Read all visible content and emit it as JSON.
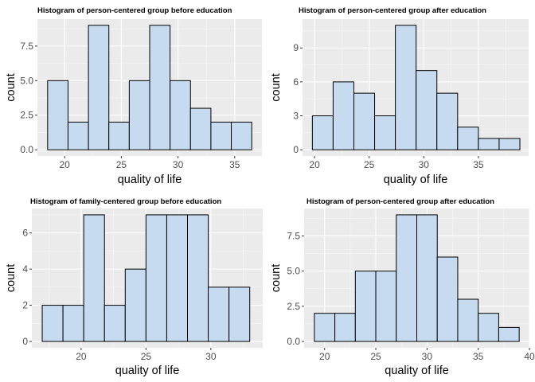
{
  "chart_data": [
    {
      "type": "bar",
      "title": "Histogram of person-centered group before education",
      "xlabel": "quality of life",
      "ylabel": "count",
      "xlim": [
        17.6,
        37.4
      ],
      "ylim": [
        -0.45,
        9.45
      ],
      "xticks": [
        20,
        25,
        30,
        35
      ],
      "yticks": [
        0,
        2.5,
        5,
        7.5
      ],
      "ytick_labels": [
        "0.0",
        "2.5",
        "5.0",
        "7.5"
      ],
      "bin_width": 1.8,
      "bins": [
        {
          "x0": 18.5,
          "x1": 20.3,
          "count": 5
        },
        {
          "x0": 20.3,
          "x1": 22.1,
          "count": 2
        },
        {
          "x0": 22.1,
          "x1": 23.9,
          "count": 9
        },
        {
          "x0": 23.9,
          "x1": 25.7,
          "count": 2
        },
        {
          "x0": 25.7,
          "x1": 27.5,
          "count": 5
        },
        {
          "x0": 27.5,
          "x1": 29.3,
          "count": 9
        },
        {
          "x0": 29.3,
          "x1": 31.1,
          "count": 5
        },
        {
          "x0": 31.1,
          "x1": 32.9,
          "count": 3
        },
        {
          "x0": 32.9,
          "x1": 34.7,
          "count": 2
        },
        {
          "x0": 34.7,
          "x1": 36.5,
          "count": 2
        }
      ]
    },
    {
      "type": "bar",
      "title": "Histogram of person-centered group after education",
      "xlabel": "quality of life",
      "ylabel": "count",
      "xlim": [
        18.9,
        39.6
      ],
      "ylim": [
        -0.55,
        11.55
      ],
      "xticks": [
        20,
        25,
        30,
        35
      ],
      "yticks": [
        0,
        3,
        6,
        9
      ],
      "ytick_labels": [
        "0",
        "3",
        "6",
        "9"
      ],
      "bin_width": 1.9,
      "bins": [
        {
          "x0": 19.8,
          "x1": 21.7,
          "count": 3
        },
        {
          "x0": 21.7,
          "x1": 23.6,
          "count": 6
        },
        {
          "x0": 23.6,
          "x1": 25.5,
          "count": 5
        },
        {
          "x0": 25.5,
          "x1": 27.4,
          "count": 3
        },
        {
          "x0": 27.4,
          "x1": 29.3,
          "count": 11
        },
        {
          "x0": 29.3,
          "x1": 31.2,
          "count": 7
        },
        {
          "x0": 31.2,
          "x1": 33.1,
          "count": 5
        },
        {
          "x0": 33.1,
          "x1": 35.0,
          "count": 2
        },
        {
          "x0": 35.0,
          "x1": 36.9,
          "count": 1
        },
        {
          "x0": 36.9,
          "x1": 38.8,
          "count": 1
        }
      ]
    },
    {
      "type": "bar",
      "title": "Histogram of family-centered group before education",
      "xlabel": "quality of life",
      "ylabel": "count",
      "xlim": [
        16.2,
        34.0
      ],
      "ylim": [
        -0.35,
        7.35
      ],
      "xticks": [
        20,
        25,
        30
      ],
      "yticks": [
        0,
        2,
        4,
        6
      ],
      "ytick_labels": [
        "0",
        "2",
        "4",
        "6"
      ],
      "bin_width": 1.6,
      "bins": [
        {
          "x0": 17.0,
          "x1": 18.6,
          "count": 2
        },
        {
          "x0": 18.6,
          "x1": 20.2,
          "count": 2
        },
        {
          "x0": 20.2,
          "x1": 21.8,
          "count": 7
        },
        {
          "x0": 21.8,
          "x1": 23.4,
          "count": 2
        },
        {
          "x0": 23.4,
          "x1": 25.0,
          "count": 4
        },
        {
          "x0": 25.0,
          "x1": 26.6,
          "count": 7
        },
        {
          "x0": 26.6,
          "x1": 28.2,
          "count": 7
        },
        {
          "x0": 28.2,
          "x1": 29.8,
          "count": 7
        },
        {
          "x0": 29.8,
          "x1": 31.4,
          "count": 3
        },
        {
          "x0": 31.4,
          "x1": 33.0,
          "count": 3
        }
      ]
    },
    {
      "type": "bar",
      "title": "Histogram of person-centered group after education",
      "xlabel": "quality of life",
      "ylabel": "count",
      "xlim": [
        18.0,
        40.0
      ],
      "ylim": [
        -0.45,
        9.45
      ],
      "xticks": [
        20,
        25,
        30,
        35,
        40
      ],
      "yticks": [
        0,
        2.5,
        5,
        7.5
      ],
      "ytick_labels": [
        "0.0",
        "2.5",
        "5.0",
        "7.5"
      ],
      "bin_width": 2.0,
      "bins": [
        {
          "x0": 19.0,
          "x1": 21.0,
          "count": 2
        },
        {
          "x0": 21.0,
          "x1": 23.0,
          "count": 2
        },
        {
          "x0": 23.0,
          "x1": 25.0,
          "count": 5
        },
        {
          "x0": 25.0,
          "x1": 27.0,
          "count": 5
        },
        {
          "x0": 27.0,
          "x1": 29.0,
          "count": 9
        },
        {
          "x0": 29.0,
          "x1": 31.0,
          "count": 9
        },
        {
          "x0": 31.0,
          "x1": 33.0,
          "count": 6
        },
        {
          "x0": 33.0,
          "x1": 35.0,
          "count": 3
        },
        {
          "x0": 35.0,
          "x1": 37.0,
          "count": 2
        },
        {
          "x0": 37.0,
          "x1": 39.0,
          "count": 1
        }
      ]
    }
  ],
  "style": {
    "panel_background": "#ebebeb",
    "grid_major": "#ffffff",
    "bar_fill": "#c6dbef",
    "bar_stroke": "#000000",
    "tick_text": "#4d4d4d"
  }
}
